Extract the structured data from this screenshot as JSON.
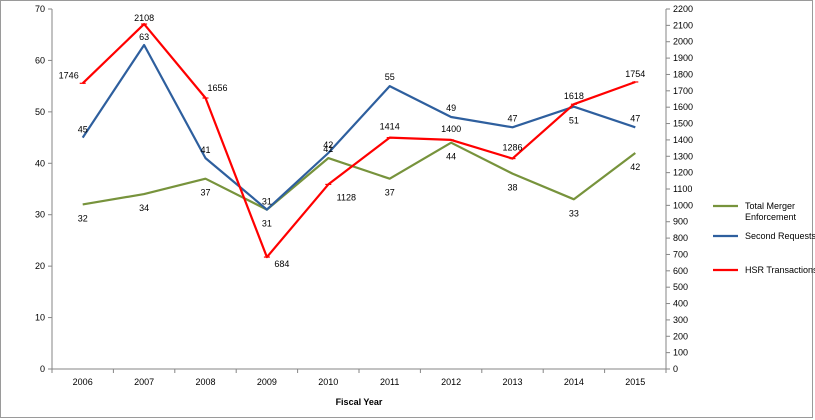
{
  "chart_data": {
    "type": "line",
    "xlabel": "Fiscal Year",
    "categories": [
      "2006",
      "2007",
      "2008",
      "2009",
      "2010",
      "2011",
      "2012",
      "2013",
      "2014",
      "2015"
    ],
    "y_left": {
      "min": 0,
      "max": 70,
      "step": 10
    },
    "y_right": {
      "min": 0,
      "max": 2200,
      "step": 100
    },
    "grid": false,
    "legend_position": "right",
    "series": [
      {
        "name": "Total Merger Enforcement",
        "axis": "left",
        "color": "#77933C",
        "values": [
          32,
          34,
          37,
          31,
          41,
          37,
          44,
          38,
          33,
          42
        ],
        "labels": [
          "32",
          "34",
          "37",
          "31",
          "41",
          "37",
          "44",
          "38",
          "33",
          "42"
        ]
      },
      {
        "name": "Second Requests",
        "axis": "left",
        "color": "#2E5F9E",
        "values": [
          45,
          63,
          41,
          31,
          42,
          55,
          49,
          47,
          51,
          47
        ],
        "labels": [
          "45",
          "63",
          "41",
          "31",
          "42",
          "55",
          "49",
          "47",
          "51",
          "47"
        ]
      },
      {
        "name": "HSR Transactions",
        "axis": "right",
        "color": "#FF0000",
        "values": [
          1746,
          2108,
          1656,
          684,
          1128,
          1414,
          1400,
          1286,
          1618,
          1754
        ],
        "labels": [
          "1746",
          "2108",
          "1656",
          "684",
          "1128",
          "1414",
          "1400",
          "1286",
          "1618",
          "1754"
        ]
      }
    ],
    "legend": [
      {
        "lines": [
          "Total Merger",
          "Enforcement"
        ]
      },
      {
        "lines": [
          "Second Requests"
        ]
      },
      {
        "lines": [
          "HSR Transactions"
        ]
      }
    ]
  }
}
